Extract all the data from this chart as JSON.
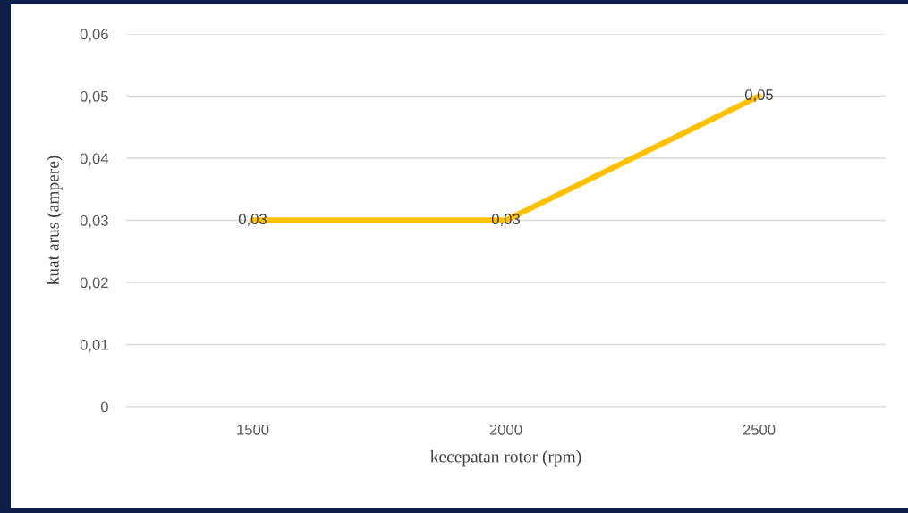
{
  "chart_data": {
    "type": "line",
    "xlabel": "kecepatan rotor (rpm)",
    "ylabel": "kuat arus (ampere)",
    "categories": [
      "1500",
      "2000",
      "2500"
    ],
    "series": [
      {
        "color": "#ffc000",
        "values": [
          0.03,
          0.03,
          0.05
        ],
        "value_labels": [
          "0,03",
          "0,03",
          "0,05"
        ]
      }
    ],
    "ylim": [
      0,
      0.06
    ],
    "yticks": [
      0,
      {
        "value": 0.01,
        "label": "0,01"
      },
      {
        "value": 0.02,
        "label": "0,02"
      },
      {
        "value": 0.03,
        "label": "0,03"
      },
      {
        "value": 0.04,
        "label": "0,04"
      },
      {
        "value": 0.05,
        "label": "0,05"
      },
      {
        "value": 0.06,
        "label": "0,06"
      }
    ],
    "grid": "y",
    "marker": "none",
    "line_style": "solid"
  }
}
